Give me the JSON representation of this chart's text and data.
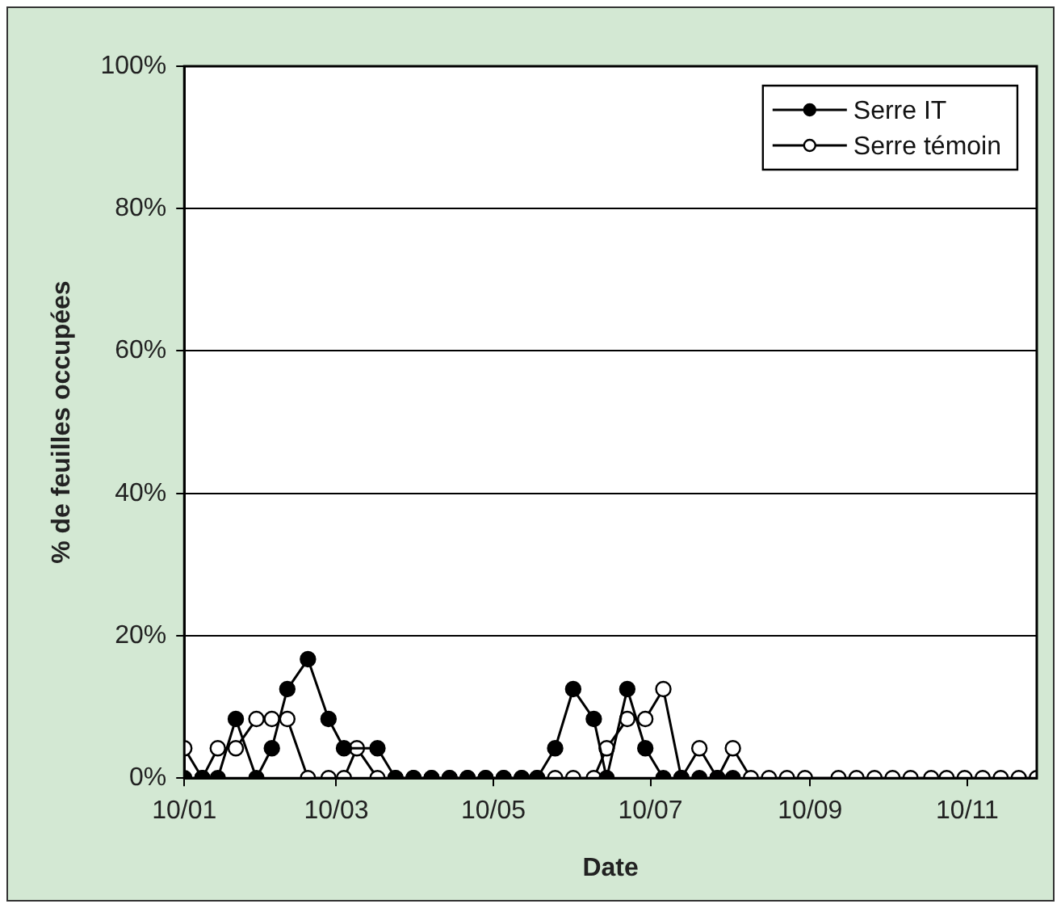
{
  "chart_data": {
    "type": "line",
    "xlabel": "Date",
    "ylabel": "% de feuilles occupées",
    "x": [
      "--01-10",
      "--01-17",
      "--01-23",
      "--01-30",
      "--02-07",
      "--02-13",
      "--02-19",
      "--02-27",
      "--03-07",
      "--03-13",
      "--03-18",
      "--03-26",
      "--04-02",
      "--04-09",
      "--04-16",
      "--04-23",
      "--04-30",
      "--05-07",
      "--05-14",
      "--05-21",
      "--05-27",
      "--06-03",
      "--06-10",
      "--06-18",
      "--06-23",
      "--07-01",
      "--07-08",
      "--07-15",
      "--07-22",
      "--07-29",
      "--08-05",
      "--08-11",
      "--08-18",
      "--08-25",
      "--09-01",
      "--09-08",
      "--09-21",
      "--09-28",
      "--10-05",
      "--10-12",
      "--10-19",
      "--10-27",
      "--11-02",
      "--11-09",
      "--11-16",
      "--11-23",
      "--11-30",
      "--12-07"
    ],
    "series": [
      {
        "name": "Serre IT",
        "color": "#000000",
        "values": [
          0,
          0,
          0,
          8.3,
          0,
          4.2,
          12.5,
          16.7,
          8.3,
          4.2,
          null,
          4.2,
          0,
          0,
          0,
          0,
          0,
          0,
          0,
          0,
          0,
          4.2,
          12.5,
          8.3,
          0,
          12.5,
          4.2,
          0,
          0,
          0,
          0,
          0,
          null,
          null,
          null,
          null,
          null,
          null,
          null,
          null,
          null,
          null,
          null,
          null,
          null,
          null,
          null,
          null
        ]
      },
      {
        "name": "Serre témoin",
        "color": "#ffffff",
        "values": [
          4.2,
          0,
          4.2,
          4.2,
          8.3,
          8.3,
          8.3,
          0,
          0,
          0,
          4.2,
          0,
          0,
          0,
          0,
          0,
          0,
          0,
          0,
          0,
          0,
          0,
          0,
          0,
          4.2,
          8.3,
          8.3,
          12.5,
          0,
          4.2,
          0,
          4.2,
          0,
          0,
          0,
          0,
          0,
          0,
          0,
          0,
          0,
          0,
          0,
          0,
          0,
          0,
          0,
          0
        ]
      }
    ],
    "xlim": [
      "--01-10",
      "--12-07"
    ],
    "xticks": [
      {
        "value": "--01-10",
        "label": "10/01"
      },
      {
        "value": "--03-10",
        "label": "10/03"
      },
      {
        "value": "--05-10",
        "label": "10/05"
      },
      {
        "value": "--07-10",
        "label": "10/07"
      },
      {
        "value": "--09-10",
        "label": "10/09"
      },
      {
        "value": "--11-10",
        "label": "10/11"
      }
    ],
    "ylim": [
      0,
      100
    ],
    "yticks": [
      {
        "value": 0,
        "label": "0%"
      },
      {
        "value": 20,
        "label": "20%"
      },
      {
        "value": 40,
        "label": "40%"
      },
      {
        "value": 60,
        "label": "60%"
      },
      {
        "value": 80,
        "label": "80%"
      },
      {
        "value": 100,
        "label": "100%"
      }
    ],
    "grid": "y",
    "legend": "top right",
    "marker": "circle",
    "line_style": "solid"
  }
}
